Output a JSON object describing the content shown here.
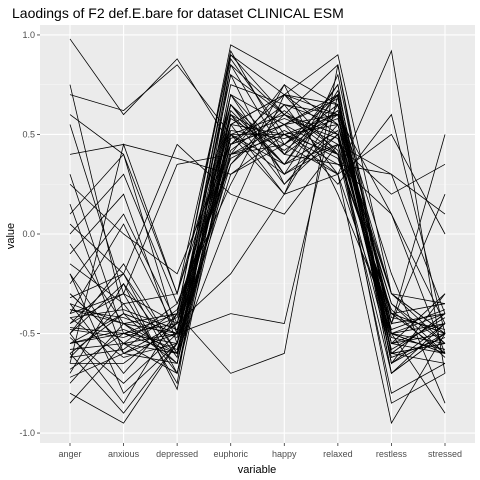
{
  "chart_data": {
    "type": "line",
    "title": "Laodings of F2 def.E.bare for dataset CLINICAL ESM",
    "xlabel": "variable",
    "ylabel": "value",
    "categories": [
      "anger",
      "anxious",
      "depressed",
      "euphoric",
      "happy",
      "relaxed",
      "restless",
      "stressed"
    ],
    "ylim": [
      -1.05,
      1.05
    ],
    "yticks": [
      1.0,
      0.5,
      0.0,
      -0.5,
      -1.0
    ],
    "ytick_labels": [
      "1.0",
      "0.5",
      "0.0",
      "-0.5",
      "-1.0"
    ],
    "grid": true,
    "legend": "none",
    "line_color": "#000000",
    "panel_background": "#ebebeb",
    "series": [
      {
        "values": [
          0.98,
          0.6,
          0.88,
          0.45,
          0.55,
          0.4,
          -0.4,
          -0.5
        ]
      },
      {
        "values": [
          0.75,
          -0.4,
          -0.5,
          0.9,
          0.6,
          0.85,
          -0.6,
          -0.55
        ]
      },
      {
        "values": [
          0.7,
          0.62,
          0.85,
          0.5,
          0.3,
          0.5,
          -0.5,
          -0.6
        ]
      },
      {
        "values": [
          0.6,
          0.4,
          -0.3,
          0.55,
          0.7,
          0.65,
          -0.45,
          -0.4
        ]
      },
      {
        "values": [
          0.55,
          -0.3,
          0.35,
          0.4,
          0.5,
          0.55,
          -0.3,
          -0.5
        ]
      },
      {
        "values": [
          0.4,
          0.45,
          0.38,
          0.3,
          0.45,
          0.7,
          -0.55,
          -0.45
        ]
      },
      {
        "values": [
          0.3,
          -0.5,
          -0.55,
          0.85,
          0.4,
          0.75,
          -0.65,
          -0.5
        ]
      },
      {
        "values": [
          0.25,
          0.0,
          -0.2,
          0.45,
          0.65,
          0.3,
          0.92,
          -0.7
        ]
      },
      {
        "values": [
          0.15,
          -0.6,
          -0.45,
          0.7,
          0.55,
          0.6,
          -0.4,
          -0.35
        ]
      },
      {
        "values": [
          0.1,
          0.4,
          -0.5,
          0.5,
          0.2,
          0.8,
          -0.5,
          -0.6
        ]
      },
      {
        "values": [
          0.05,
          -0.2,
          -0.6,
          0.6,
          0.35,
          0.45,
          0.2,
          0.35
        ]
      },
      {
        "values": [
          0.0,
          0.3,
          -0.35,
          0.25,
          0.75,
          0.55,
          -0.6,
          -0.4
        ]
      },
      {
        "values": [
          -0.05,
          -0.45,
          -0.4,
          0.92,
          0.45,
          0.62,
          -0.3,
          -0.55
        ]
      },
      {
        "values": [
          -0.1,
          0.2,
          -0.55,
          0.35,
          0.6,
          0.4,
          -0.7,
          -0.5
        ]
      },
      {
        "values": [
          -0.15,
          -0.35,
          -0.3,
          0.65,
          0.3,
          0.72,
          -0.45,
          0.2
        ]
      },
      {
        "values": [
          -0.2,
          -0.6,
          -0.65,
          0.55,
          0.5,
          0.35,
          0.1,
          -0.45
        ]
      },
      {
        "values": [
          -0.25,
          0.1,
          -0.45,
          0.45,
          0.7,
          0.6,
          -0.55,
          -0.3
        ]
      },
      {
        "values": [
          -0.3,
          -0.55,
          -0.5,
          0.8,
          0.25,
          0.5,
          -0.35,
          -0.6
        ]
      },
      {
        "values": [
          -0.32,
          -0.2,
          -0.7,
          0.4,
          0.55,
          0.68,
          -0.6,
          -0.4
        ]
      },
      {
        "values": [
          -0.35,
          -0.7,
          -0.4,
          0.6,
          0.45,
          0.3,
          0.5,
          0.0
        ]
      },
      {
        "values": [
          -0.38,
          -0.45,
          -0.6,
          0.75,
          0.65,
          0.55,
          -0.5,
          -0.55
        ]
      },
      {
        "values": [
          -0.4,
          0.05,
          -0.5,
          0.5,
          0.35,
          0.75,
          -0.65,
          -0.45
        ]
      },
      {
        "values": [
          -0.42,
          -0.62,
          -0.55,
          0.3,
          0.5,
          0.4,
          -0.4,
          -0.5
        ]
      },
      {
        "values": [
          -0.45,
          -0.3,
          -0.75,
          0.85,
          0.6,
          0.5,
          -0.3,
          -0.35
        ]
      },
      {
        "values": [
          -0.47,
          -0.5,
          -0.45,
          0.55,
          0.2,
          0.65,
          -0.55,
          -0.6
        ]
      },
      {
        "values": [
          -0.5,
          -0.15,
          -0.6,
          0.65,
          0.4,
          0.35,
          0.3,
          0.1
        ]
      },
      {
        "values": [
          -0.52,
          -0.75,
          -0.5,
          0.45,
          0.55,
          0.7,
          -0.7,
          -0.5
        ]
      },
      {
        "values": [
          -0.55,
          -0.4,
          -0.65,
          0.7,
          0.3,
          0.45,
          -0.45,
          -0.4
        ]
      },
      {
        "values": [
          -0.58,
          -0.55,
          -0.35,
          0.35,
          0.65,
          0.6,
          -0.6,
          -0.65
        ]
      },
      {
        "values": [
          -0.6,
          -0.9,
          -0.55,
          0.5,
          0.5,
          0.3,
          -0.5,
          -0.45
        ]
      },
      {
        "values": [
          -0.62,
          -0.35,
          -0.7,
          0.6,
          0.25,
          0.55,
          -0.35,
          -0.55
        ]
      },
      {
        "values": [
          -0.65,
          -0.65,
          -0.45,
          0.8,
          0.6,
          0.5,
          -0.55,
          -0.5
        ]
      },
      {
        "values": [
          -0.68,
          -0.5,
          -0.6,
          0.4,
          0.45,
          0.65,
          -0.65,
          -0.3
        ]
      },
      {
        "values": [
          -0.7,
          -0.25,
          -0.78,
          0.55,
          0.7,
          0.4,
          -0.4,
          -0.6
        ]
      },
      {
        "values": [
          -0.72,
          -0.6,
          -0.5,
          0.65,
          0.35,
          0.7,
          -0.7,
          -0.45
        ]
      },
      {
        "values": [
          -0.75,
          -0.45,
          -0.65,
          0.45,
          0.55,
          0.25,
          0.6,
          -0.5
        ]
      },
      {
        "values": [
          -0.8,
          -0.95,
          -0.55,
          0.7,
          0.4,
          0.6,
          -0.5,
          -0.9
        ]
      },
      {
        "values": [
          -0.85,
          -0.55,
          -0.7,
          0.5,
          0.6,
          0.45,
          -0.8,
          -0.65
        ]
      },
      {
        "values": [
          -0.5,
          -0.85,
          -0.4,
          -0.7,
          -0.6,
          0.85,
          -0.5,
          -0.4
        ]
      },
      {
        "values": [
          -0.6,
          -0.4,
          -0.5,
          -0.4,
          -0.45,
          0.7,
          -0.6,
          -0.55
        ]
      },
      {
        "values": [
          -0.4,
          -0.3,
          -0.45,
          -0.2,
          0.2,
          0.3,
          -0.95,
          -0.5
        ]
      },
      {
        "values": [
          -0.3,
          -0.55,
          -0.6,
          0.1,
          0.7,
          0.5,
          -0.85,
          -0.7
        ]
      },
      {
        "values": [
          -0.45,
          -0.2,
          0.45,
          0.2,
          0.1,
          0.45,
          0.3,
          -0.4
        ]
      },
      {
        "values": [
          -0.55,
          -0.5,
          -0.4,
          0.95,
          0.8,
          0.65,
          -0.2,
          -0.85
        ]
      },
      {
        "values": [
          -0.65,
          0.45,
          -0.3,
          0.9,
          0.7,
          0.9,
          -0.3,
          -0.5
        ]
      },
      {
        "values": [
          -0.2,
          -0.8,
          -0.55,
          0.4,
          0.75,
          0.2,
          -0.45,
          0.5
        ]
      },
      {
        "values": [
          -0.35,
          -0.45,
          -0.5,
          0.88,
          0.5,
          0.6,
          0.1,
          -0.6
        ]
      },
      {
        "values": [
          -0.5,
          -0.25,
          -0.62,
          0.62,
          0.35,
          0.52,
          -0.58,
          -0.42
        ]
      },
      {
        "values": [
          -0.42,
          -0.38,
          -0.48,
          0.52,
          0.48,
          0.58,
          -0.48,
          -0.38
        ]
      },
      {
        "values": [
          -0.55,
          -0.48,
          -0.58,
          0.42,
          0.62,
          0.42,
          -0.62,
          -0.52
        ]
      },
      {
        "values": [
          -0.48,
          -0.52,
          -0.42,
          0.58,
          0.42,
          0.62,
          -0.42,
          -0.48
        ]
      },
      {
        "values": [
          -0.38,
          -0.42,
          -0.52,
          0.48,
          0.58,
          0.48,
          -0.52,
          -0.58
        ]
      },
      {
        "values": [
          -0.62,
          -0.58,
          -0.38,
          0.38,
          0.52,
          0.38,
          -0.38,
          -0.62
        ]
      }
    ]
  }
}
